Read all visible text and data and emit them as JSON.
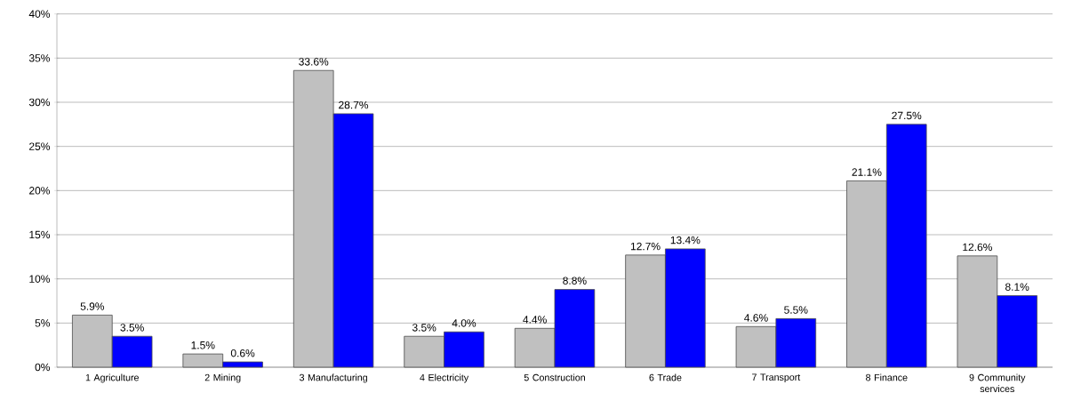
{
  "chart_data": {
    "type": "bar",
    "categories": [
      "1 Agriculture",
      "2 Mining",
      "3 Manufacturing",
      "4 Electricity",
      "5 Construction",
      "6 Trade",
      "7 Transport",
      "8 Finance",
      "9 Community services"
    ],
    "series": [
      {
        "color": "#c0c0c0",
        "values": [
          5.9,
          1.5,
          33.6,
          3.5,
          4.4,
          12.7,
          4.6,
          21.1,
          12.6
        ],
        "value_labels": [
          "5.9%",
          "1.5%",
          "33.6%",
          "3.5%",
          "4.4%",
          "12.7%",
          "4.6%",
          "21.1%",
          "12.6%"
        ]
      },
      {
        "color": "#0000ff",
        "values": [
          3.5,
          0.6,
          28.7,
          4.0,
          8.8,
          13.4,
          5.5,
          27.5,
          8.1
        ],
        "value_labels": [
          "3.5%",
          "0.6%",
          "28.7%",
          "4.0%",
          "8.8%",
          "13.4%",
          "5.5%",
          "27.5%",
          "8.1%"
        ]
      }
    ],
    "ylim": [
      0,
      40
    ],
    "yticks": [
      {
        "value": 0,
        "label": "0%"
      },
      {
        "value": 5,
        "label": "5%"
      },
      {
        "value": 10,
        "label": "10%"
      },
      {
        "value": 15,
        "label": "15%"
      },
      {
        "value": 20,
        "label": "20%"
      },
      {
        "value": 25,
        "label": "25%"
      },
      {
        "value": 30,
        "label": "30%"
      },
      {
        "value": 35,
        "label": "35%"
      },
      {
        "value": 40,
        "label": "40%"
      }
    ],
    "grid": "y"
  }
}
